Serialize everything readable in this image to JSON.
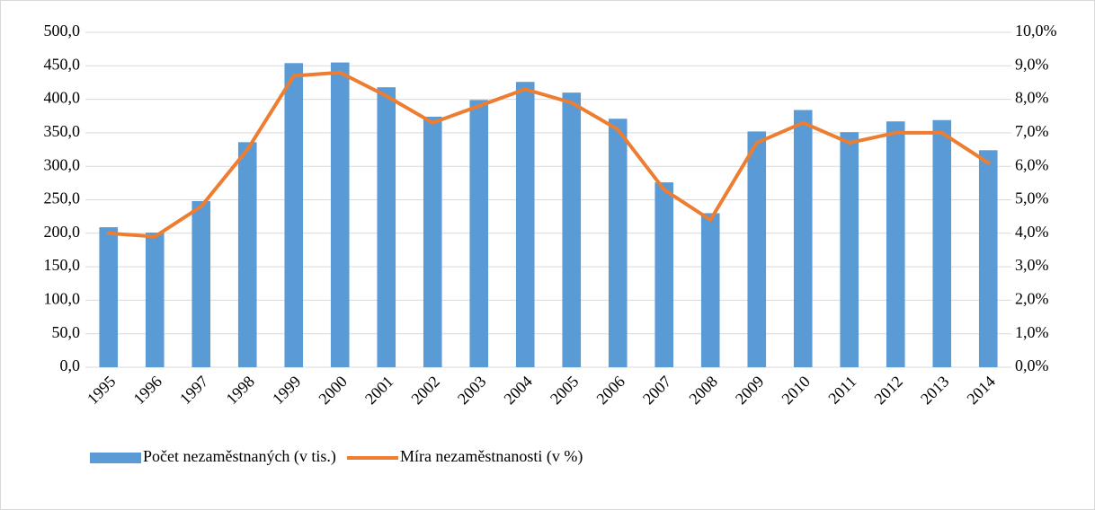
{
  "chart_data": {
    "type": "bar",
    "categories": [
      "1995",
      "1996",
      "1997",
      "1998",
      "1999",
      "2000",
      "2001",
      "2002",
      "2003",
      "2004",
      "2005",
      "2006",
      "2007",
      "2008",
      "2009",
      "2010",
      "2011",
      "2012",
      "2013",
      "2014"
    ],
    "series": [
      {
        "name": "Počet nezaměstnaných (v tis.)",
        "type": "bar",
        "color": "#5b9bd5",
        "values": [
          209,
          201,
          248,
          336,
          454,
          455,
          418,
          374,
          399,
          426,
          410,
          371,
          276,
          230,
          352,
          384,
          351,
          367,
          369,
          324
        ]
      },
      {
        "name": "Míra nezaměstnanosti (v %)",
        "type": "line",
        "axis": "y2",
        "color": "#ed7d31",
        "values": [
          4.0,
          3.9,
          4.8,
          6.5,
          8.7,
          8.8,
          8.1,
          7.3,
          7.8,
          8.3,
          7.9,
          7.1,
          5.3,
          4.4,
          6.7,
          7.3,
          6.7,
          7.0,
          7.0,
          6.1
        ]
      }
    ],
    "ylim": [
      0,
      500
    ],
    "yticks": [
      {
        "value": 0,
        "label": "0,0"
      },
      {
        "value": 50,
        "label": "50,0"
      },
      {
        "value": 100,
        "label": "100,0"
      },
      {
        "value": 150,
        "label": "150,0"
      },
      {
        "value": 200,
        "label": "200,0"
      },
      {
        "value": 250,
        "label": "250,0"
      },
      {
        "value": 300,
        "label": "300,0"
      },
      {
        "value": 350,
        "label": "350,0"
      },
      {
        "value": 400,
        "label": "400,0"
      },
      {
        "value": 450,
        "label": "450,0"
      },
      {
        "value": 500,
        "label": "500,0"
      }
    ],
    "y2lim": [
      0,
      10
    ],
    "y2ticks": [
      {
        "value": 0,
        "label": "0,0%"
      },
      {
        "value": 1,
        "label": "1,0%"
      },
      {
        "value": 2,
        "label": "2,0%"
      },
      {
        "value": 3,
        "label": "3,0%"
      },
      {
        "value": 4,
        "label": "4,0%"
      },
      {
        "value": 5,
        "label": "5,0%"
      },
      {
        "value": 6,
        "label": "6,0%"
      },
      {
        "value": 7,
        "label": "7,0%"
      },
      {
        "value": 8,
        "label": "8,0%"
      },
      {
        "value": 9,
        "label": "9,0%"
      },
      {
        "value": 10,
        "label": "10,0%"
      }
    ],
    "grid": true,
    "legend": "bottom"
  }
}
